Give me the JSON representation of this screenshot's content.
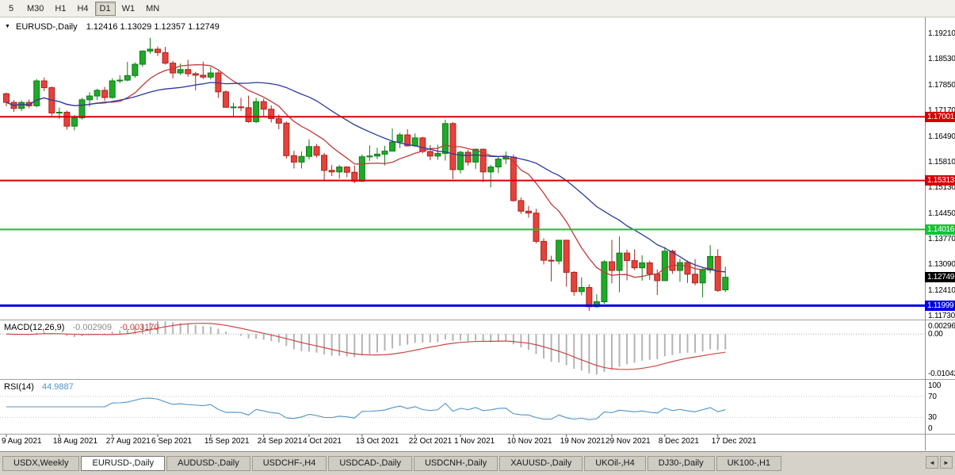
{
  "toolbar": {
    "periods": [
      {
        "label": "5",
        "active": false
      },
      {
        "label": "M30",
        "active": false
      },
      {
        "label": "H1",
        "active": false
      },
      {
        "label": "H4",
        "active": false
      },
      {
        "label": "D1",
        "active": true
      },
      {
        "label": "W1",
        "active": false
      },
      {
        "label": "MN",
        "active": false
      }
    ]
  },
  "chart_header": {
    "dropdown_icon": "▼",
    "symbol_title": "EURUSD-,Daily",
    "ohlc_text": "1.12416 1.13029 1.12357 1.12749"
  },
  "chart_data": {
    "type": "candlestick",
    "symbol": "EURUSD-",
    "timeframe": "Daily",
    "last_bar": {
      "open": 1.12416,
      "high": 1.13029,
      "low": 1.12357,
      "close": 1.12749
    },
    "price_axis": {
      "labels": [
        "1.19210",
        "1.18530",
        "1.17850",
        "1.17170",
        "1.16490",
        "1.15810",
        "1.15130",
        "1.14450",
        "1.13770",
        "1.13090",
        "1.12410",
        "1.11730"
      ],
      "max": 1.1963,
      "min": 1.1165
    },
    "candle_colors": {
      "up": "#1faa28",
      "up_border": "#127a18",
      "down": "#e5423a",
      "down_border": "#a8251e"
    },
    "moving_averages": [
      {
        "name": "ma-fast",
        "period": 10,
        "color": "#c03a3a"
      },
      {
        "name": "ma-slow",
        "period": 24,
        "color": "#2b3a9c"
      }
    ],
    "hlines": [
      {
        "value": 1.17001,
        "label": "1.17001",
        "color": "#d40000",
        "width": 2
      },
      {
        "value": 1.15313,
        "label": "1.15313",
        "color": "#d40000",
        "width": 2
      },
      {
        "value": 1.14016,
        "label": "1.14016",
        "color": "#0fc435",
        "width": 2
      },
      {
        "value": 1.11999,
        "label": "1.11999",
        "color": "#0000e0",
        "width": 3
      }
    ],
    "current_price": {
      "value": 1.12749,
      "label": "1.12749",
      "bg": "#000000"
    },
    "macd": {
      "label": "MACD(12,26,9)",
      "fast": 12,
      "slow": 26,
      "signal": 9,
      "value_main": "-0.002909",
      "value_signal": "-0.003170",
      "axis_labels": [
        "0.002966",
        "0.00",
        "-0.01042"
      ],
      "scale_max": 0.0033,
      "scale_min": -0.0113,
      "hist_color": "#b4b4b4",
      "signal_color": "#cc4646"
    },
    "rsi": {
      "label": "RSI(14)",
      "period": 14,
      "value": "44.9887",
      "axis_labels": [
        "100",
        "70",
        "30",
        "0"
      ],
      "levels": [
        70,
        30
      ],
      "color": "#4f93c9"
    },
    "date_labels": [
      {
        "i": 0,
        "t": "9 Aug 2021"
      },
      {
        "i": 7,
        "t": "18 Aug 2021"
      },
      {
        "i": 14,
        "t": "27 Aug 2021"
      },
      {
        "i": 20,
        "t": "6 Sep 2021"
      },
      {
        "i": 27,
        "t": "15 Sep 2021"
      },
      {
        "i": 34,
        "t": "24 Sep 2021"
      },
      {
        "i": 40,
        "t": "4 Oct 2021"
      },
      {
        "i": 47,
        "t": "13 Oct 2021"
      },
      {
        "i": 54,
        "t": "22 Oct 2021"
      },
      {
        "i": 60,
        "t": "1 Nov 2021"
      },
      {
        "i": 67,
        "t": "10 Nov 2021"
      },
      {
        "i": 74,
        "t": "19 Nov 2021"
      },
      {
        "i": 80,
        "t": "29 Nov 2021"
      },
      {
        "i": 87,
        "t": "8 Dec 2021"
      },
      {
        "i": 94,
        "t": "17 Dec 2021"
      }
    ],
    "candles": [
      [
        1.1761,
        1.1764,
        1.1728,
        1.1738
      ],
      [
        1.1738,
        1.1744,
        1.1713,
        1.1722
      ],
      [
        1.1722,
        1.1743,
        1.1715,
        1.1738
      ],
      [
        1.1738,
        1.1746,
        1.1723,
        1.1729
      ],
      [
        1.1729,
        1.18,
        1.1725,
        1.1795
      ],
      [
        1.1795,
        1.1804,
        1.1768,
        1.1777
      ],
      [
        1.1777,
        1.178,
        1.1703,
        1.171
      ],
      [
        1.171,
        1.1724,
        1.1694,
        1.1712
      ],
      [
        1.1712,
        1.1716,
        1.1666,
        1.1675
      ],
      [
        1.1675,
        1.1705,
        1.1664,
        1.1697
      ],
      [
        1.1697,
        1.175,
        1.1693,
        1.1745
      ],
      [
        1.1745,
        1.1765,
        1.1727,
        1.1755
      ],
      [
        1.1755,
        1.1774,
        1.1744,
        1.177
      ],
      [
        1.177,
        1.1779,
        1.1742,
        1.1751
      ],
      [
        1.1751,
        1.1802,
        1.1748,
        1.1795
      ],
      [
        1.1795,
        1.181,
        1.1789,
        1.1797
      ],
      [
        1.1797,
        1.1845,
        1.1794,
        1.1809
      ],
      [
        1.1809,
        1.1844,
        1.1803,
        1.1839
      ],
      [
        1.1839,
        1.1876,
        1.1832,
        1.1874
      ],
      [
        1.1874,
        1.1909,
        1.1867,
        1.1879
      ],
      [
        1.1879,
        1.1886,
        1.1861,
        1.187
      ],
      [
        1.187,
        1.1885,
        1.1838,
        1.1842
      ],
      [
        1.1842,
        1.1848,
        1.1802,
        1.1816
      ],
      [
        1.1816,
        1.1841,
        1.1811,
        1.1825
      ],
      [
        1.1825,
        1.1851,
        1.1806,
        1.1814
      ],
      [
        1.1814,
        1.1819,
        1.177,
        1.181
      ],
      [
        1.181,
        1.1846,
        1.18,
        1.1805
      ],
      [
        1.1805,
        1.1832,
        1.1799,
        1.1816
      ],
      [
        1.1816,
        1.1821,
        1.175,
        1.1766
      ],
      [
        1.1766,
        1.177,
        1.1724,
        1.1725
      ],
      [
        1.1725,
        1.1737,
        1.1701,
        1.1726
      ],
      [
        1.1726,
        1.175,
        1.1715,
        1.1724
      ],
      [
        1.1724,
        1.1756,
        1.1684,
        1.1687
      ],
      [
        1.1687,
        1.175,
        1.1683,
        1.174
      ],
      [
        1.174,
        1.1748,
        1.1701,
        1.172
      ],
      [
        1.172,
        1.173,
        1.1685,
        1.1695
      ],
      [
        1.1695,
        1.1706,
        1.1667,
        1.1683
      ],
      [
        1.1683,
        1.1688,
        1.1589,
        1.1597
      ],
      [
        1.1597,
        1.161,
        1.1563,
        1.158
      ],
      [
        1.158,
        1.1608,
        1.1563,
        1.1595
      ],
      [
        1.1595,
        1.164,
        1.1587,
        1.1621
      ],
      [
        1.1621,
        1.1628,
        1.1592,
        1.1598
      ],
      [
        1.1598,
        1.1604,
        1.1529,
        1.1558
      ],
      [
        1.1558,
        1.1572,
        1.1543,
        1.1554
      ],
      [
        1.1554,
        1.1572,
        1.1536,
        1.1567
      ],
      [
        1.1567,
        1.1569,
        1.154,
        1.1553
      ],
      [
        1.1553,
        1.1571,
        1.1524,
        1.1529
      ],
      [
        1.1529,
        1.16,
        1.1527,
        1.1594
      ],
      [
        1.1594,
        1.1624,
        1.1583,
        1.1596
      ],
      [
        1.1596,
        1.1618,
        1.1588,
        1.1601
      ],
      [
        1.1601,
        1.1623,
        1.1571,
        1.1609
      ],
      [
        1.1609,
        1.1669,
        1.1609,
        1.1633
      ],
      [
        1.1633,
        1.1658,
        1.1617,
        1.1652
      ],
      [
        1.1652,
        1.1667,
        1.1621,
        1.1623
      ],
      [
        1.1623,
        1.1656,
        1.162,
        1.1644
      ],
      [
        1.1644,
        1.1647,
        1.1603,
        1.1608
      ],
      [
        1.1608,
        1.1625,
        1.1585,
        1.1596
      ],
      [
        1.1596,
        1.1626,
        1.1586,
        1.1603
      ],
      [
        1.1603,
        1.1692,
        1.1584,
        1.1682
      ],
      [
        1.1682,
        1.1686,
        1.1535,
        1.156
      ],
      [
        1.156,
        1.161,
        1.155,
        1.1606
      ],
      [
        1.1606,
        1.1612,
        1.1571,
        1.158
      ],
      [
        1.158,
        1.1616,
        1.1562,
        1.1614
      ],
      [
        1.1614,
        1.1616,
        1.1527,
        1.1554
      ],
      [
        1.1554,
        1.1573,
        1.1513,
        1.1567
      ],
      [
        1.1567,
        1.1594,
        1.1551,
        1.1588
      ],
      [
        1.1588,
        1.1608,
        1.1575,
        1.1593
      ],
      [
        1.1593,
        1.16,
        1.1475,
        1.1478
      ],
      [
        1.1478,
        1.1486,
        1.1443,
        1.145
      ],
      [
        1.145,
        1.1464,
        1.1433,
        1.1445
      ],
      [
        1.1445,
        1.1456,
        1.1365,
        1.137
      ],
      [
        1.137,
        1.1378,
        1.1309,
        1.132
      ],
      [
        1.132,
        1.1332,
        1.1264,
        1.1318
      ],
      [
        1.1318,
        1.1374,
        1.1309,
        1.1373
      ],
      [
        1.1373,
        1.1374,
        1.125,
        1.1288
      ],
      [
        1.1288,
        1.1291,
        1.1226,
        1.1237
      ],
      [
        1.1237,
        1.1275,
        1.1227,
        1.1248
      ],
      [
        1.1248,
        1.1256,
        1.1186,
        1.1197
      ],
      [
        1.1197,
        1.123,
        1.1194,
        1.121
      ],
      [
        1.121,
        1.132,
        1.1205,
        1.1316
      ],
      [
        1.1316,
        1.1374,
        1.1259,
        1.1293
      ],
      [
        1.1293,
        1.1383,
        1.1235,
        1.1339
      ],
      [
        1.1339,
        1.1348,
        1.1267,
        1.1319
      ],
      [
        1.1319,
        1.1349,
        1.1294,
        1.13
      ],
      [
        1.13,
        1.1333,
        1.1266,
        1.1313
      ],
      [
        1.1313,
        1.1319,
        1.1268,
        1.1284
      ],
      [
        1.1284,
        1.1296,
        1.1228,
        1.1266
      ],
      [
        1.1266,
        1.1355,
        1.1265,
        1.1344
      ],
      [
        1.1344,
        1.1348,
        1.1284,
        1.1293
      ],
      [
        1.1293,
        1.1324,
        1.1263,
        1.1314
      ],
      [
        1.1314,
        1.1319,
        1.126,
        1.1283
      ],
      [
        1.1283,
        1.1323,
        1.1254,
        1.126
      ],
      [
        1.126,
        1.13,
        1.1222,
        1.1294
      ],
      [
        1.1294,
        1.136,
        1.1286,
        1.133
      ],
      [
        1.133,
        1.1349,
        1.1236,
        1.124
      ],
      [
        1.12416,
        1.13029,
        1.12357,
        1.12749
      ]
    ]
  },
  "tabs": [
    {
      "label": "USDX,Weekly",
      "active": false
    },
    {
      "label": "EURUSD-,Daily",
      "active": true
    },
    {
      "label": "AUDUSD-,Daily",
      "active": false
    },
    {
      "label": "USDCHF-,H4",
      "active": false
    },
    {
      "label": "USDCAD-,Daily",
      "active": false
    },
    {
      "label": "USDCNH-,Daily",
      "active": false
    },
    {
      "label": "XAUUSD-,Daily",
      "active": false
    },
    {
      "label": "UKOil-,H4",
      "active": false
    },
    {
      "label": "DJ30-,Daily",
      "active": false
    },
    {
      "label": "UK100-,H1",
      "active": false
    }
  ],
  "tab_scroll": {
    "left": "◄",
    "right": "►"
  }
}
